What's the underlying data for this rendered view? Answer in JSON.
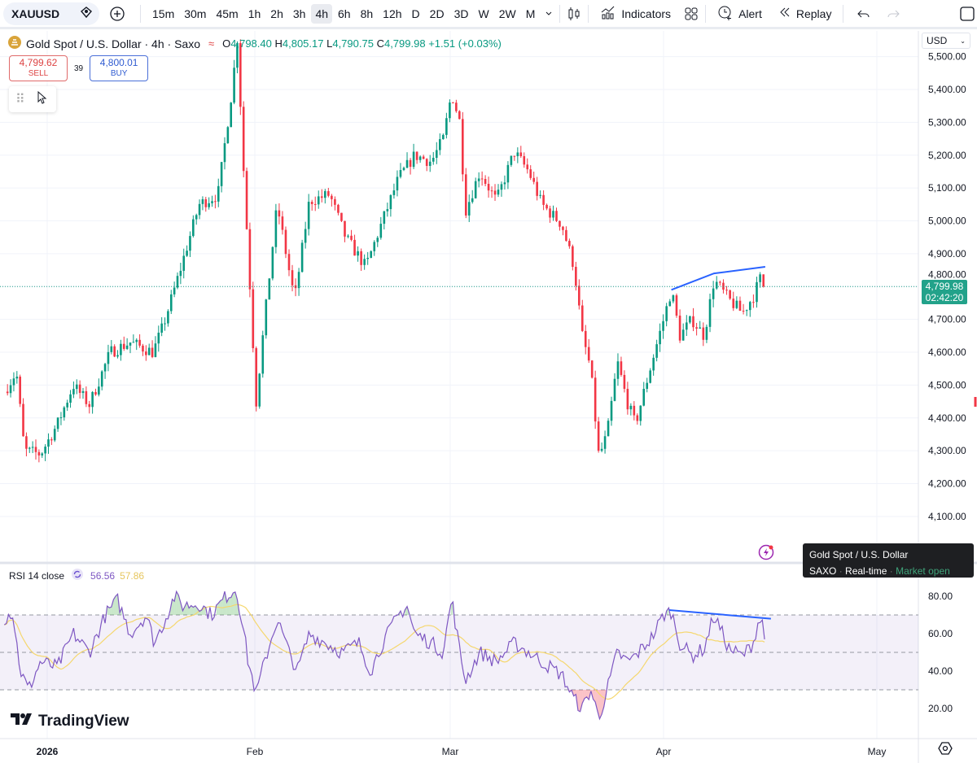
{
  "toolbar": {
    "symbol": "XAUUSD",
    "timeframes": [
      "15m",
      "30m",
      "45m",
      "1h",
      "2h",
      "3h",
      "4h",
      "6h",
      "8h",
      "12h",
      "D",
      "2D",
      "3D",
      "W",
      "2W",
      "M"
    ],
    "active_timeframe": "4h",
    "indicators_label": "Indicators",
    "alert_label": "Alert",
    "replay_label": "Replay"
  },
  "legend": {
    "title": "Gold Spot / U.S. Dollar · 4h · Saxo",
    "o_label": "O",
    "o": "4,798.40",
    "h_label": "H",
    "h": "4,805.17",
    "l_label": "L",
    "l": "4,790.75",
    "c_label": "C",
    "c": "4,799.98",
    "change": "+1.51 (+0.03%)"
  },
  "trade": {
    "sell_price": "4,799.62",
    "sell_label": "SELL",
    "spread": "39",
    "buy_price": "4,800.01",
    "buy_label": "BUY"
  },
  "price_axis": {
    "currency": "USD",
    "last_price": "4,799.98",
    "countdown": "02:42:20"
  },
  "tooltip": {
    "title": "Gold Spot / U.S. Dollar",
    "exchange": "SAXO",
    "feed": "Real-time",
    "status": "Market open"
  },
  "rsi_legend": {
    "label": "RSI 14 close",
    "value": "56.56",
    "ma_value": "57.86"
  },
  "brand": "TradingView",
  "colors": {
    "up": "#089981",
    "down": "#f23645",
    "rsi": "#7e57c2",
    "rsi_ma": "#f5d76e",
    "drawing": "#2962ff",
    "last": "#22a28a"
  },
  "chart_data": {
    "type": "candlestick",
    "title": "Gold Spot / U.S. Dollar · 4h · Saxo",
    "x_unit": "days since 2026-01-01",
    "x_ticks": [
      {
        "label": "2026",
        "day": 0
      },
      {
        "label": "Feb",
        "day": 31
      },
      {
        "label": "Mar",
        "day": 59
      },
      {
        "label": "Apr",
        "day": 90
      },
      {
        "label": "May",
        "day": 120
      }
    ],
    "y_ticks": [
      4100,
      4200,
      4300,
      4400,
      4500,
      4600,
      4700,
      4800,
      4900,
      5000,
      5100,
      5200,
      5300,
      5400,
      5500
    ],
    "y_tick_labels": [
      "4,100.00",
      "4,200.00",
      "4,300.00",
      "4,400.00",
      "4,500.00",
      "4,600.00",
      "4,700.00",
      "4,800.00",
      "4,900.00",
      "5,000.00",
      "5,100.00",
      "5,200.00",
      "5,300.00",
      "5,400.00",
      "5,500.00"
    ],
    "ylim": [
      4000,
      5560
    ],
    "price_path": [
      [
        -6.4,
        4480
      ],
      [
        -4.6,
        4540
      ],
      [
        -3.4,
        4300
      ],
      [
        -1,
        4290
      ],
      [
        1.5,
        4380
      ],
      [
        3.9,
        4500
      ],
      [
        6.3,
        4440
      ],
      [
        9.4,
        4600
      ],
      [
        12.4,
        4630
      ],
      [
        15.8,
        4600
      ],
      [
        17.3,
        4680
      ],
      [
        19.7,
        4840
      ],
      [
        22.7,
        5050
      ],
      [
        25.5,
        5080
      ],
      [
        27.6,
        5400
      ],
      [
        28.4,
        5560
      ],
      [
        29.2,
        5200
      ],
      [
        30,
        4900
      ],
      [
        31.2,
        4450
      ],
      [
        32.4,
        4700
      ],
      [
        34.2,
        5050
      ],
      [
        35.9,
        4850
      ],
      [
        36.7,
        4760
      ],
      [
        38.8,
        5060
      ],
      [
        41.7,
        5080
      ],
      [
        44,
        4950
      ],
      [
        46.9,
        4860
      ],
      [
        49.3,
        5000
      ],
      [
        51.6,
        5130
      ],
      [
        53.9,
        5200
      ],
      [
        56.3,
        5180
      ],
      [
        58,
        5250
      ],
      [
        59.2,
        5390
      ],
      [
        60.4,
        5300
      ],
      [
        61.2,
        5030
      ],
      [
        63.3,
        5150
      ],
      [
        65.7,
        5060
      ],
      [
        68.3,
        5210
      ],
      [
        70.4,
        5150
      ],
      [
        72.3,
        5050
      ],
      [
        75.2,
        4990
      ],
      [
        77,
        4860
      ],
      [
        78.2,
        4650
      ],
      [
        79.4,
        4550
      ],
      [
        80.6,
        4280
      ],
      [
        81.8,
        4350
      ],
      [
        83.3,
        4570
      ],
      [
        84.7,
        4450
      ],
      [
        85.9,
        4380
      ],
      [
        88.3,
        4570
      ],
      [
        90,
        4700
      ],
      [
        91.1,
        4790
      ],
      [
        92.3,
        4650
      ],
      [
        94,
        4700
      ],
      [
        95.7,
        4650
      ],
      [
        97.1,
        4820
      ],
      [
        99.2,
        4760
      ],
      [
        101.1,
        4720
      ],
      [
        102.6,
        4770
      ],
      [
        103.7,
        4830
      ],
      [
        104.3,
        4800
      ]
    ],
    "last_close": 4799.98,
    "price_trendline": [
      [
        91.1,
        4790
      ],
      [
        97.1,
        4840
      ],
      [
        104.3,
        4860
      ]
    ],
    "rsi": {
      "ylim": [
        10,
        90
      ],
      "y_ticks": [
        20,
        40,
        60,
        80
      ],
      "y_tick_labels": [
        "20.00",
        "40.00",
        "60.00",
        "80.00"
      ],
      "bands": [
        30,
        50,
        70
      ],
      "path": [
        [
          -6.4,
          68
        ],
        [
          -5.2,
          72
        ],
        [
          -4,
          40
        ],
        [
          -2.8,
          30
        ],
        [
          -1,
          45
        ],
        [
          1.5,
          42
        ],
        [
          3.9,
          60
        ],
        [
          6.3,
          50
        ],
        [
          8.7,
          70
        ],
        [
          10.5,
          78
        ],
        [
          12.4,
          60
        ],
        [
          14.8,
          70
        ],
        [
          16,
          55
        ],
        [
          17.3,
          65
        ],
        [
          19,
          80
        ],
        [
          20.2,
          75
        ],
        [
          22.7,
          76
        ],
        [
          24.5,
          70
        ],
        [
          26.7,
          80
        ],
        [
          28.2,
          84
        ],
        [
          29.2,
          65
        ],
        [
          30,
          45
        ],
        [
          31.2,
          28
        ],
        [
          32.4,
          45
        ],
        [
          34.2,
          68
        ],
        [
          35.9,
          50
        ],
        [
          37.1,
          40
        ],
        [
          38.8,
          60
        ],
        [
          41.2,
          55
        ],
        [
          43.5,
          50
        ],
        [
          45.9,
          55
        ],
        [
          47.6,
          40
        ],
        [
          49.3,
          55
        ],
        [
          51.6,
          70
        ],
        [
          52.8,
          75
        ],
        [
          53.9,
          60
        ],
        [
          56.3,
          55
        ],
        [
          58,
          50
        ],
        [
          59.2,
          79
        ],
        [
          60.4,
          50
        ],
        [
          61.2,
          35
        ],
        [
          63.3,
          50
        ],
        [
          65.7,
          45
        ],
        [
          68.3,
          55
        ],
        [
          70.4,
          50
        ],
        [
          72.3,
          45
        ],
        [
          75.2,
          38
        ],
        [
          77,
          25
        ],
        [
          78.2,
          20
        ],
        [
          79.4,
          30
        ],
        [
          80.6,
          15
        ],
        [
          81.8,
          30
        ],
        [
          83.3,
          50
        ],
        [
          84.7,
          45
        ],
        [
          85.9,
          48
        ],
        [
          88.3,
          58
        ],
        [
          90,
          70
        ],
        [
          91.1,
          72
        ],
        [
          92.3,
          55
        ],
        [
          94,
          48
        ],
        [
          95.7,
          52
        ],
        [
          97.1,
          70
        ],
        [
          99.2,
          52
        ],
        [
          101.1,
          48
        ],
        [
          102.6,
          55
        ],
        [
          103.4,
          68
        ],
        [
          104,
          65
        ],
        [
          104.3,
          57
        ]
      ],
      "trendline": [
        [
          90.8,
          72.6
        ],
        [
          105.1,
          68
        ]
      ]
    }
  }
}
